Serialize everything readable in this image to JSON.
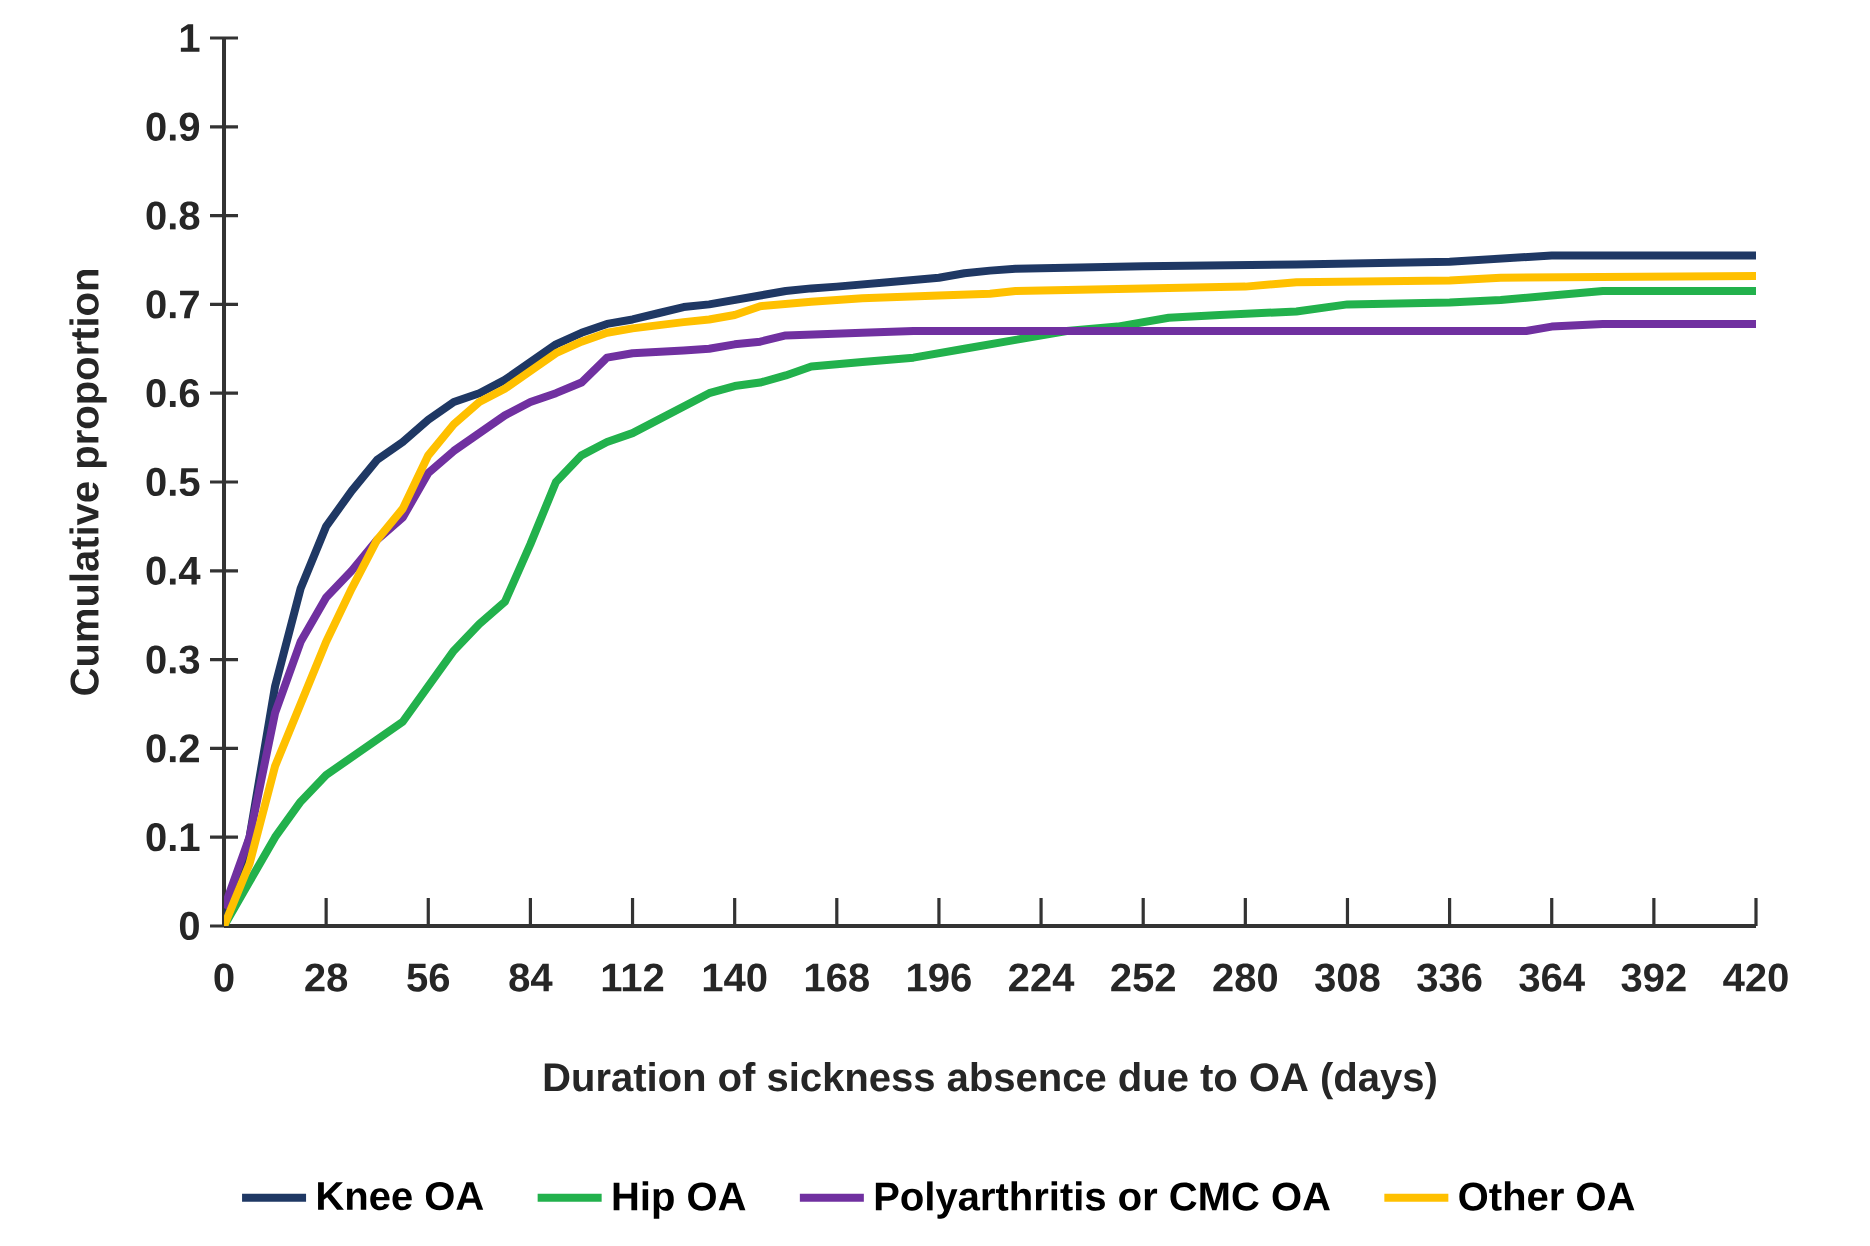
{
  "chart_data": {
    "type": "line",
    "xlabel": "Duration of sickness absence due to OA (days)",
    "ylabel": "Cumulative proportion",
    "xlim": [
      0,
      420
    ],
    "ylim": [
      0,
      1
    ],
    "xticks": [
      0,
      28,
      56,
      84,
      112,
      140,
      168,
      196,
      224,
      252,
      280,
      308,
      336,
      364,
      392,
      420
    ],
    "yticks": [
      0,
      0.1,
      0.2,
      0.3,
      0.4,
      0.5,
      0.6,
      0.7,
      0.8,
      0.9,
      1
    ],
    "grid": false,
    "legend": "bottom",
    "marker": "none",
    "line_style": "solid",
    "series": [
      {
        "name": "Knee OA",
        "color": "#1f3864",
        "x": [
          0,
          7,
          14,
          21,
          28,
          35,
          42,
          49,
          56,
          63,
          70,
          77,
          84,
          91,
          98,
          105,
          112,
          119,
          126,
          133,
          140,
          147,
          154,
          161,
          168,
          182,
          196,
          203,
          210,
          217,
          252,
          294,
          336,
          364,
          420
        ],
        "values": [
          0,
          0.1,
          0.27,
          0.38,
          0.45,
          0.49,
          0.525,
          0.545,
          0.57,
          0.59,
          0.6,
          0.615,
          0.635,
          0.655,
          0.668,
          0.678,
          0.683,
          0.69,
          0.697,
          0.7,
          0.705,
          0.71,
          0.715,
          0.718,
          0.72,
          0.725,
          0.73,
          0.735,
          0.738,
          0.74,
          0.743,
          0.745,
          0.748,
          0.755,
          0.755
        ]
      },
      {
        "name": "Hip OA",
        "color": "#22b14c",
        "x": [
          0,
          7,
          14,
          21,
          28,
          35,
          42,
          49,
          56,
          63,
          70,
          77,
          84,
          91,
          98,
          105,
          112,
          119,
          126,
          133,
          140,
          147,
          154,
          161,
          175,
          189,
          203,
          217,
          231,
          245,
          259,
          273,
          294,
          308,
          336,
          350,
          364,
          378,
          420
        ],
        "values": [
          0,
          0.05,
          0.1,
          0.14,
          0.17,
          0.19,
          0.21,
          0.23,
          0.27,
          0.31,
          0.34,
          0.365,
          0.43,
          0.5,
          0.53,
          0.545,
          0.555,
          0.57,
          0.585,
          0.6,
          0.608,
          0.612,
          0.62,
          0.63,
          0.635,
          0.64,
          0.65,
          0.66,
          0.67,
          0.675,
          0.685,
          0.688,
          0.692,
          0.7,
          0.702,
          0.705,
          0.71,
          0.715,
          0.715
        ]
      },
      {
        "name": "Polyarthritis or CMC OA",
        "color": "#7030a0",
        "x": [
          0,
          7,
          14,
          21,
          28,
          35,
          42,
          49,
          56,
          63,
          70,
          77,
          84,
          91,
          98,
          105,
          112,
          126,
          133,
          140,
          147,
          154,
          175,
          189,
          357,
          364,
          378,
          420
        ],
        "values": [
          0.02,
          0.1,
          0.24,
          0.32,
          0.37,
          0.4,
          0.435,
          0.46,
          0.51,
          0.535,
          0.555,
          0.575,
          0.59,
          0.6,
          0.612,
          0.64,
          0.645,
          0.648,
          0.65,
          0.655,
          0.658,
          0.665,
          0.668,
          0.67,
          0.67,
          0.675,
          0.678,
          0.678
        ]
      },
      {
        "name": "Other OA",
        "color": "#ffc000",
        "x": [
          0,
          7,
          14,
          21,
          28,
          35,
          42,
          49,
          56,
          63,
          70,
          77,
          84,
          91,
          98,
          105,
          112,
          126,
          133,
          140,
          147,
          161,
          175,
          196,
          210,
          217,
          280,
          294,
          336,
          350,
          420
        ],
        "values": [
          0,
          0.07,
          0.18,
          0.25,
          0.32,
          0.38,
          0.435,
          0.47,
          0.53,
          0.565,
          0.59,
          0.605,
          0.625,
          0.645,
          0.658,
          0.668,
          0.673,
          0.68,
          0.683,
          0.688,
          0.698,
          0.703,
          0.707,
          0.71,
          0.712,
          0.715,
          0.72,
          0.725,
          0.727,
          0.73,
          0.732
        ]
      }
    ]
  }
}
